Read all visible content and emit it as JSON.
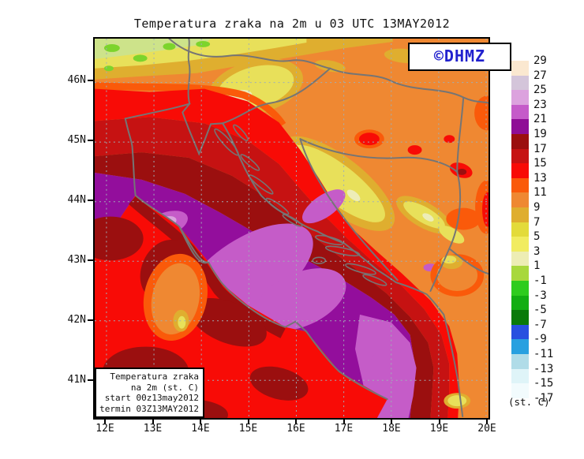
{
  "title": "Temperatura zraka na 2m u 03 UTC 13MAY2012",
  "watermark": {
    "text": "©DHMZ",
    "color": "#2121CE"
  },
  "legend_box": {
    "lines": [
      "Temperatura zraka",
      "na 2m (st. C)",
      "start 00z13may2012",
      "termin 03Z13MAY2012"
    ]
  },
  "axes": {
    "lon_ticks": [
      "12E",
      "13E",
      "14E",
      "15E",
      "16E",
      "17E",
      "18E",
      "19E",
      "20E"
    ],
    "lat_ticks": [
      "46N",
      "45N",
      "44N",
      "43N",
      "42N",
      "41N"
    ]
  },
  "colorbar": {
    "unit_label": "(st. C)",
    "levels": [
      "29",
      "27",
      "25",
      "23",
      "21",
      "19",
      "17",
      "15",
      "13",
      "11",
      "9",
      "7",
      "5",
      "3",
      "1",
      "-1",
      "-3",
      "-5",
      "-7",
      "-9",
      "-11",
      "-13",
      "-15",
      "-17"
    ],
    "colors": [
      "#FBE8D0",
      "#D4C5DA",
      "#DCA2DE",
      "#C55BC9",
      "#8F0D96",
      "#9B0F0F",
      "#C61212",
      "#F80B06",
      "#FA5A0A",
      "#EF8832",
      "#DFAE2F",
      "#E3DB3A",
      "#F1EC60",
      "#EDEDB4",
      "#A8D83C",
      "#2ECC1E",
      "#12AE12",
      "#0A7A0A",
      "#2850E0",
      "#28A0E0",
      "#B0DCE8",
      "#DFF4F8",
      "#F2FBFD"
    ]
  },
  "map_colors": {
    "sea_purple": "#930E9C",
    "sea_warm_patch": "#C55CC8",
    "coastline_gray": "#757575",
    "gridline_gray": "#9FAFB7",
    "frame_black": "#000000"
  }
}
